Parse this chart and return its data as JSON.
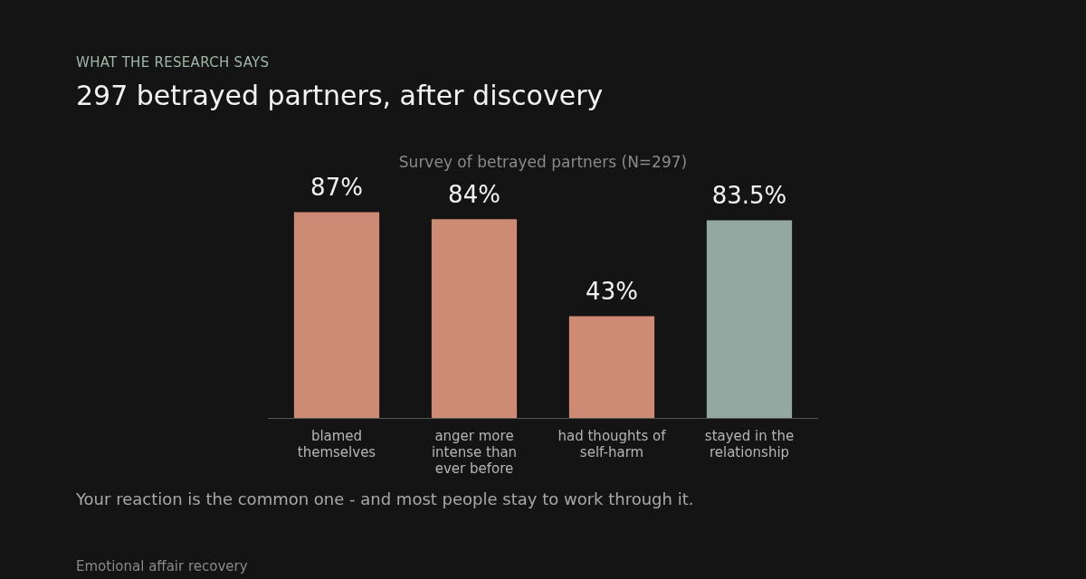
{
  "chart_data": {
    "type": "bar",
    "title": "297 betrayed partners, after discovery",
    "subtitle": "Survey of betrayed partners (N=297)",
    "categories": [
      "blamed themselves",
      "anger more intense than ever before",
      "had thoughts of self-harm",
      "stayed in the relationship"
    ],
    "values": [
      87,
      84,
      43,
      83.5
    ],
    "colors": [
      "#cd8a74",
      "#cd8a74",
      "#cd8a74",
      "#93a8a0"
    ],
    "value_labels": [
      "87%",
      "84%",
      "43%",
      "83.5%"
    ],
    "tick_labels": "x",
    "annotations": [
      "WHAT THE RESEARCH SAYS",
      "Your reaction is the common one - and most people stay to work through it.",
      "Emotional affair recovery"
    ]
  }
}
